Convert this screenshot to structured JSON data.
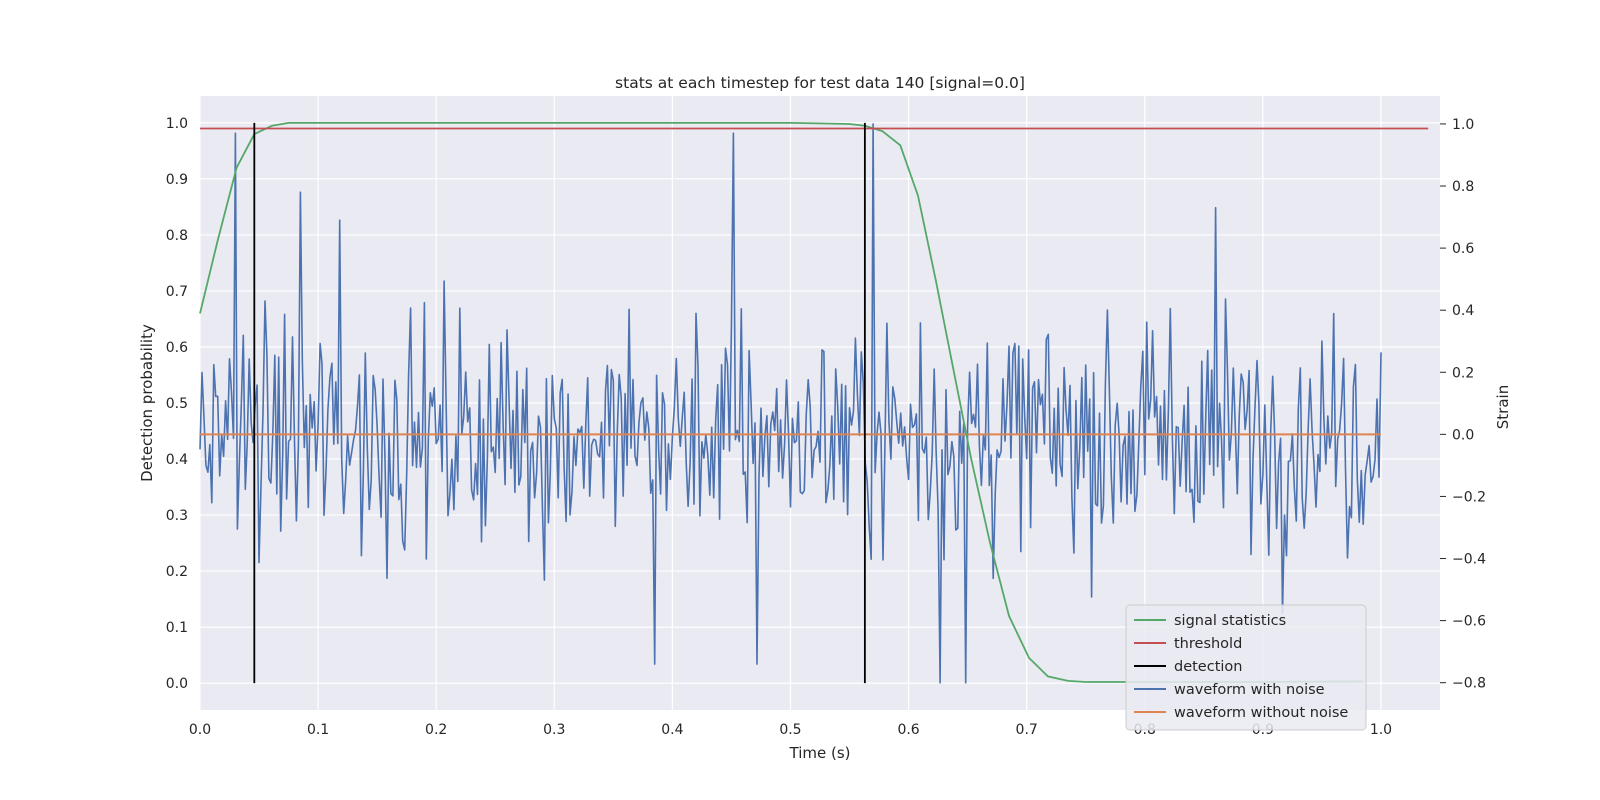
{
  "chart_data": {
    "type": "line",
    "title": "stats at each timestep for test data 140 [signal=0.0]",
    "xlabel": "Time (s)",
    "ylabel": "Detection probability",
    "y2label": "Strain",
    "xlim": [
      0.0,
      1.05
    ],
    "ylim": [
      -0.048,
      1.048
    ],
    "y2lim": [
      -0.888,
      1.09
    ],
    "x_ticks": [
      0.0,
      0.1,
      0.2,
      0.3,
      0.4,
      0.5,
      0.6,
      0.7,
      0.8,
      0.9,
      1.0
    ],
    "x_tick_labels": [
      "0.0",
      "0.1",
      "0.2",
      "0.3",
      "0.4",
      "0.5",
      "0.6",
      "0.7",
      "0.8",
      "0.9",
      "1.0"
    ],
    "y_ticks": [
      0.0,
      0.1,
      0.2,
      0.3,
      0.4,
      0.5,
      0.6,
      0.7,
      0.8,
      0.9,
      1.0
    ],
    "y_tick_labels": [
      "0.0",
      "0.1",
      "0.2",
      "0.3",
      "0.4",
      "0.5",
      "0.6",
      "0.7",
      "0.8",
      "0.9",
      "1.0"
    ],
    "y2_ticks": [
      -0.8,
      -0.6,
      -0.4,
      -0.2,
      0.0,
      0.2,
      0.4,
      0.6,
      0.8,
      1.0
    ],
    "y2_tick_labels": [
      "−0.8",
      "−0.6",
      "−0.4",
      "−0.2",
      "0.0",
      "0.2",
      "0.4",
      "0.6",
      "0.8",
      "1.0"
    ],
    "grid": true,
    "legend_position": "lower-right",
    "threshold": {
      "name": "threshold",
      "y": 0.99,
      "x_range": [
        0.0,
        1.04
      ],
      "color": "#c44e52"
    },
    "detections": {
      "name": "detection",
      "x": [
        0.046,
        0.563
      ],
      "y_range": [
        0.0,
        1.0
      ],
      "color": "#000000"
    },
    "signal_statistics": {
      "name": "signal statistics",
      "color": "#55a868",
      "x": [
        0.0,
        0.015,
        0.031,
        0.046,
        0.061,
        0.075,
        0.1,
        0.2,
        0.3,
        0.4,
        0.5,
        0.55,
        0.563,
        0.578,
        0.593,
        0.608,
        0.623,
        0.638,
        0.653,
        0.669,
        0.685,
        0.702,
        0.718,
        0.735,
        0.75,
        0.8,
        0.9,
        0.985
      ],
      "y": [
        0.66,
        0.79,
        0.92,
        0.98,
        0.995,
        1.0,
        1.0,
        1.0,
        1.0,
        1.0,
        1.0,
        0.998,
        0.995,
        0.985,
        0.96,
        0.87,
        0.72,
        0.56,
        0.4,
        0.25,
        0.12,
        0.045,
        0.012,
        0.004,
        0.002,
        0.002,
        0.002,
        0.003
      ]
    },
    "waveform_with_noise": {
      "name": "waveform with noise",
      "color": "#4c72b0",
      "axis": "right",
      "x_range": [
        0.0,
        1.0
      ],
      "n_points": 600,
      "y_range": [
        -0.8,
        1.0
      ],
      "y_center": 0.0,
      "y_typical_amplitude": 0.3,
      "note_samples": [
        {
          "x": 0.03,
          "y": 0.97
        },
        {
          "x": 0.085,
          "y": 0.78
        },
        {
          "x": 0.118,
          "y": 0.69
        },
        {
          "x": 0.452,
          "y": 0.97
        },
        {
          "x": 0.57,
          "y": 1.0
        },
        {
          "x": 0.626,
          "y": -0.8
        },
        {
          "x": 0.648,
          "y": -0.8
        },
        {
          "x": 0.385,
          "y": -0.74
        },
        {
          "x": 0.472,
          "y": -0.74
        },
        {
          "x": 0.86,
          "y": 0.73
        }
      ]
    },
    "waveform_without_noise": {
      "name": "waveform without noise",
      "color": "#dd8452",
      "axis": "right",
      "x": [
        0.0,
        1.0
      ],
      "y": [
        0.0,
        0.0
      ]
    },
    "legend": [
      "signal statistics",
      "threshold",
      "detection",
      "waveform with noise",
      "waveform without noise"
    ],
    "colors": {
      "plot_background": "#eaeaf2",
      "grid": "#ffffff",
      "text": "#262626"
    }
  }
}
